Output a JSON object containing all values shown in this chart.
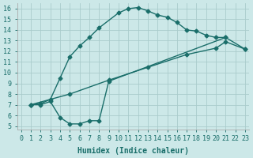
{
  "xlabel": "Humidex (Indice chaleur)",
  "background_color": "#cce8e8",
  "grid_color": "#aacccc",
  "line_color": "#1a6e6a",
  "xlim_min": -0.4,
  "xlim_max": 23.4,
  "ylim_min": 4.7,
  "ylim_max": 16.5,
  "xticks": [
    0,
    1,
    2,
    3,
    4,
    5,
    6,
    7,
    8,
    9,
    10,
    11,
    12,
    13,
    14,
    15,
    16,
    17,
    18,
    19,
    20,
    21,
    22,
    23
  ],
  "yticks": [
    5,
    6,
    7,
    8,
    9,
    10,
    11,
    12,
    13,
    14,
    15,
    16
  ],
  "curve_upper_x": [
    1,
    2,
    3,
    4,
    5,
    6,
    7,
    8,
    10,
    11,
    12,
    13,
    14,
    15,
    16,
    17,
    18,
    19,
    20,
    21
  ],
  "curve_upper_y": [
    7.0,
    7.1,
    7.5,
    9.5,
    11.5,
    12.5,
    13.3,
    14.2,
    15.6,
    16.0,
    16.1,
    15.8,
    15.4,
    15.2,
    14.7,
    14.0,
    13.9,
    13.5,
    13.3,
    13.3
  ],
  "curve_middle_x": [
    1,
    5,
    9,
    13,
    17,
    20,
    21,
    23
  ],
  "curve_middle_y": [
    7.0,
    8.0,
    9.3,
    10.5,
    11.7,
    12.3,
    12.9,
    12.2
  ],
  "curve_lower_x": [
    1,
    2,
    3,
    4,
    5,
    6,
    7,
    8,
    9,
    21,
    23
  ],
  "curve_lower_y": [
    7.0,
    7.0,
    7.3,
    5.8,
    5.2,
    5.2,
    5.5,
    5.5,
    9.2,
    13.3,
    12.2
  ],
  "marker": "D",
  "marker_size": 2.5,
  "linewidth": 1.0,
  "xlabel_fontsize": 7,
  "tick_fontsize": 6
}
